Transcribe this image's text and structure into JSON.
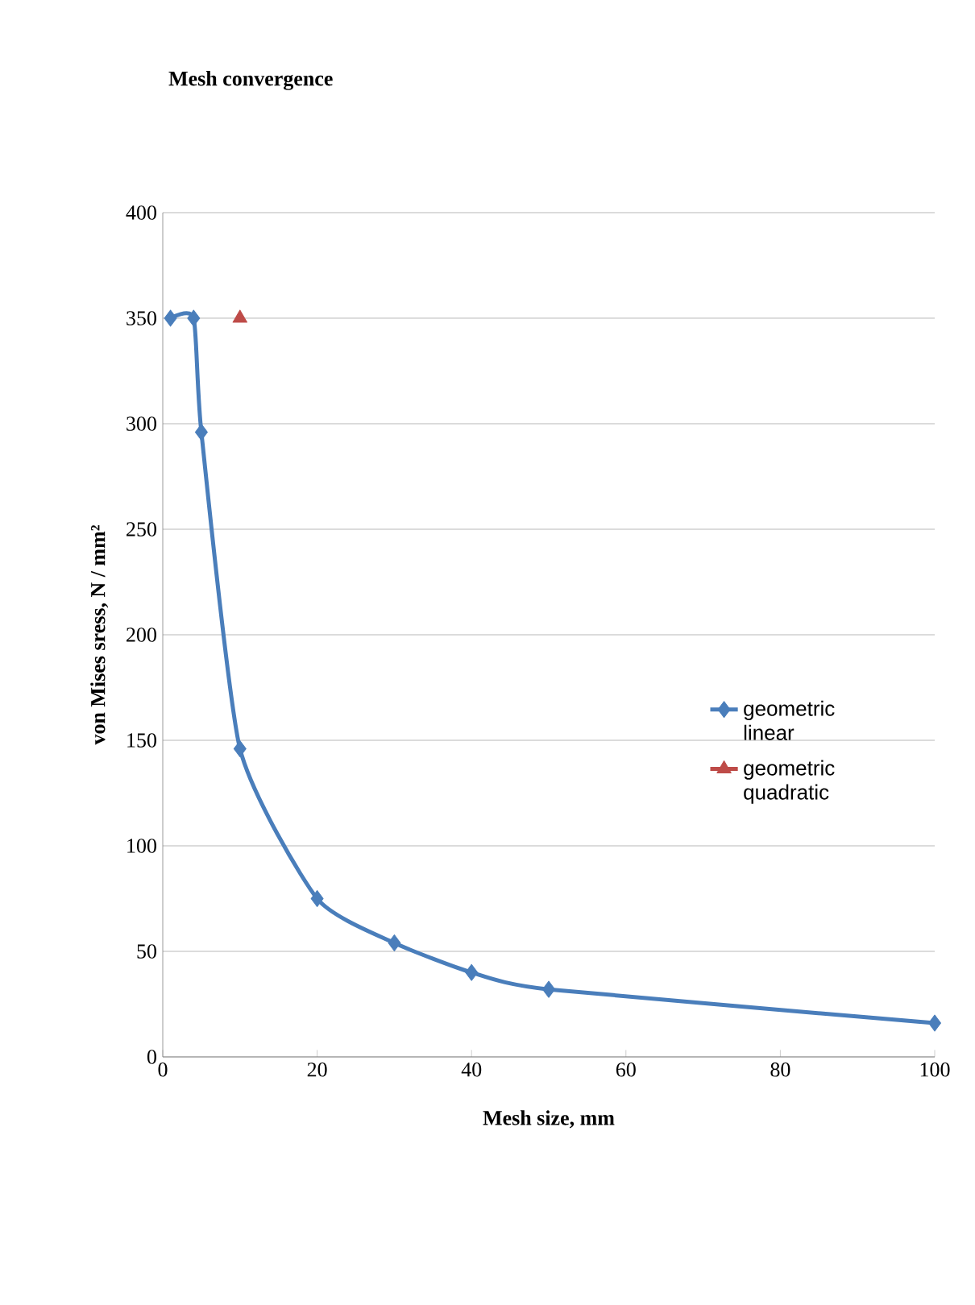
{
  "chart_data": {
    "type": "line",
    "title": "Mesh convergence",
    "xlabel": "Mesh size, mm",
    "ylabel": "von Mises sress, N / mm²",
    "xlim": [
      0,
      100
    ],
    "xticks": [
      0,
      20,
      40,
      60,
      80,
      100
    ],
    "ylim": [
      0,
      400
    ],
    "yticks": [
      0,
      50,
      100,
      150,
      200,
      250,
      300,
      350,
      400
    ],
    "grid": "y",
    "legend": "right",
    "series": [
      {
        "name": "geometric linear",
        "color": "#4a7ebb",
        "marker": "diamond",
        "x": [
          1,
          4,
          5,
          10,
          20,
          30,
          40,
          50,
          100
        ],
        "values": [
          350,
          350,
          296,
          146,
          75,
          54,
          40,
          32,
          16
        ]
      },
      {
        "name": "geometric quadratic",
        "color": "#be4b48",
        "marker": "triangle",
        "x": [
          10
        ],
        "values": [
          350
        ]
      }
    ]
  }
}
